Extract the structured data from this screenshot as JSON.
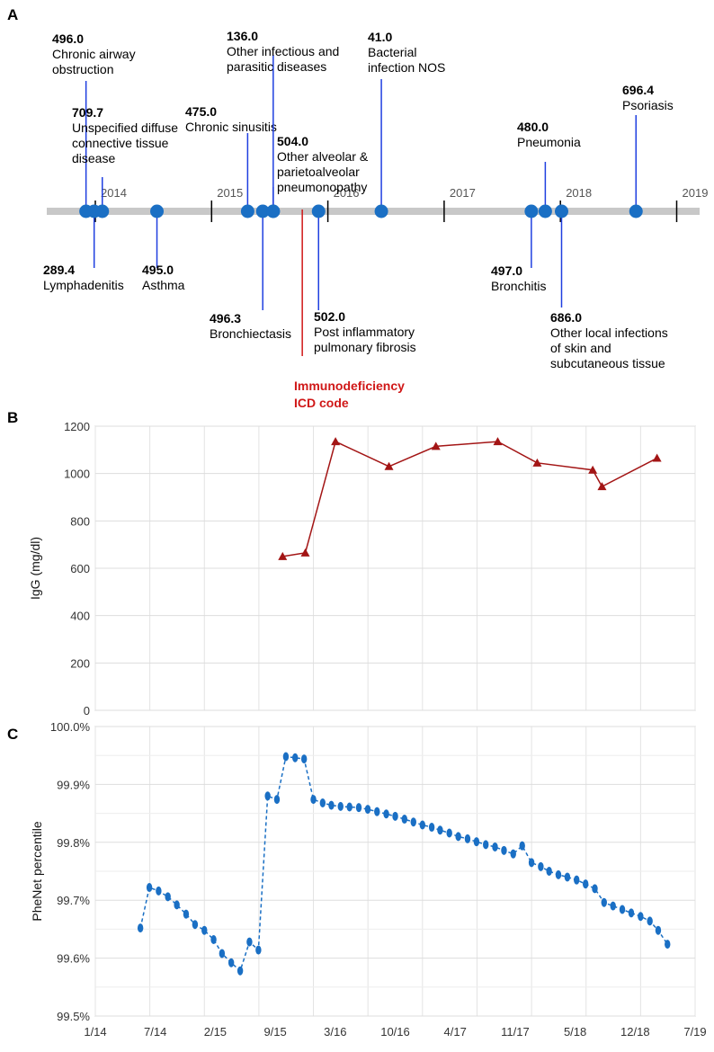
{
  "chart_data": [
    {
      "panel": "A",
      "type": "timeline",
      "years": [
        "2014",
        "2015",
        "2016",
        "2017",
        "2018",
        "2019"
      ],
      "events": [
        {
          "date": "2013.92",
          "code": "496.0",
          "label": [
            "Chronic airway",
            "obstruction"
          ],
          "side": "above"
        },
        {
          "date": "2013.99",
          "code": "289.4",
          "label": [
            "Lymphadenitis"
          ],
          "side": "below"
        },
        {
          "date": "2014.06",
          "code": "709.7",
          "label": [
            "Unspecified diffuse",
            "connective tissue",
            "disease"
          ],
          "side": "above"
        },
        {
          "date": "2014.53",
          "code": "495.0",
          "label": [
            "Asthma"
          ],
          "side": "below"
        },
        {
          "date": "2015.31",
          "code": "475.0",
          "label": [
            "Chronic sinusitis"
          ],
          "side": "above"
        },
        {
          "date": "2015.44",
          "code": "496.3",
          "label": [
            "Bronchiectasis"
          ],
          "side": "below"
        },
        {
          "date": "2015.53",
          "code": "136.0",
          "label": [
            "Other infectious and",
            "parasitic diseases"
          ],
          "side": "above"
        },
        {
          "date": "2015.53",
          "code": "504.0",
          "label": [
            "Other alveolar &",
            "parietoalveolar",
            "pneumonopathy"
          ],
          "side": "above"
        },
        {
          "date": "2015.92",
          "code": "502.0",
          "label": [
            "Post inflammatory",
            "pulmonary fibrosis"
          ],
          "side": "below"
        },
        {
          "date": "2016.46",
          "code": "41.0",
          "label": [
            "Bacterial",
            "infection NOS"
          ],
          "side": "above"
        },
        {
          "date": "2017.75",
          "code": "497.0",
          "label": [
            "Bronchitis"
          ],
          "side": "below"
        },
        {
          "date": "2017.87",
          "code": "480.0",
          "label": [
            "Pneumonia"
          ],
          "side": "above"
        },
        {
          "date": "2018.01",
          "code": "686.0",
          "label": [
            "Other local infections",
            "of skin and",
            "subcutaneous tissue"
          ],
          "side": "below"
        },
        {
          "date": "2018.65",
          "code": "696.4",
          "label": [
            "Psoriasis"
          ],
          "side": "above"
        }
      ],
      "marker": {
        "date": "2015.78",
        "label": [
          "Immunodeficiency",
          "ICD code"
        ],
        "color": "#d01818"
      },
      "colors": {
        "point": "#1a6fc4",
        "stem": "#1f3fe0",
        "axis": "#c8c8c8"
      }
    },
    {
      "panel": "B",
      "type": "line",
      "ylabel": "IgG (mg/dl)",
      "ylim": [
        0,
        1200
      ],
      "yticks": [
        "0",
        "200",
        "400",
        "600",
        "800",
        "1000",
        "1200"
      ],
      "grid": true,
      "color": "#a31515",
      "marker": "triangle",
      "points": [
        {
          "x": "2015-09-20",
          "y": 650
        },
        {
          "x": "2015-12-05",
          "y": 665
        },
        {
          "x": "2016-03-15",
          "y": 1135
        },
        {
          "x": "2016-09-10",
          "y": 1030
        },
        {
          "x": "2017-02-15",
          "y": 1115
        },
        {
          "x": "2017-09-10",
          "y": 1135
        },
        {
          "x": "2018-01-20",
          "y": 1045
        },
        {
          "x": "2018-07-25",
          "y": 1015
        },
        {
          "x": "2018-08-25",
          "y": 945
        },
        {
          "x": "2019-02-25",
          "y": 1065
        }
      ]
    },
    {
      "panel": "C",
      "type": "line",
      "ylabel": "PheNet percentile",
      "ylim": [
        99.5,
        100.0
      ],
      "yticks": [
        "99.5%",
        "99.6%",
        "99.7%",
        "99.8%",
        "99.9%",
        "100.0%"
      ],
      "xticks": [
        "1/14",
        "7/14",
        "2/15",
        "9/15",
        "3/16",
        "10/16",
        "4/17",
        "11/17",
        "5/18",
        "12/18",
        "7/19"
      ],
      "grid": true,
      "color": "#1a6fc4",
      "line_style": "dashed",
      "points": [
        {
          "x": "2014-06-01",
          "y": 99.652
        },
        {
          "x": "2014-07-01",
          "y": 99.722
        },
        {
          "x": "2014-08-01",
          "y": 99.716
        },
        {
          "x": "2014-09-01",
          "y": 99.706
        },
        {
          "x": "2014-10-01",
          "y": 99.692
        },
        {
          "x": "2014-11-01",
          "y": 99.676
        },
        {
          "x": "2014-12-01",
          "y": 99.658
        },
        {
          "x": "2015-01-01",
          "y": 99.648
        },
        {
          "x": "2015-02-01",
          "y": 99.632
        },
        {
          "x": "2015-03-01",
          "y": 99.608
        },
        {
          "x": "2015-04-01",
          "y": 99.592
        },
        {
          "x": "2015-05-01",
          "y": 99.578
        },
        {
          "x": "2015-06-01",
          "y": 99.628
        },
        {
          "x": "2015-07-01",
          "y": 99.614
        },
        {
          "x": "2015-08-01",
          "y": 99.88
        },
        {
          "x": "2015-09-01",
          "y": 99.874
        },
        {
          "x": "2015-10-01",
          "y": 99.948
        },
        {
          "x": "2015-11-01",
          "y": 99.946
        },
        {
          "x": "2015-12-01",
          "y": 99.944
        },
        {
          "x": "2016-01-01",
          "y": 99.874
        },
        {
          "x": "2016-02-01",
          "y": 99.868
        },
        {
          "x": "2016-03-01",
          "y": 99.864
        },
        {
          "x": "2016-04-01",
          "y": 99.862
        },
        {
          "x": "2016-05-01",
          "y": 99.861
        },
        {
          "x": "2016-06-01",
          "y": 99.86
        },
        {
          "x": "2016-07-01",
          "y": 99.857
        },
        {
          "x": "2016-08-01",
          "y": 99.853
        },
        {
          "x": "2016-09-01",
          "y": 99.849
        },
        {
          "x": "2016-10-01",
          "y": 99.845
        },
        {
          "x": "2016-11-01",
          "y": 99.84
        },
        {
          "x": "2016-12-01",
          "y": 99.835
        },
        {
          "x": "2017-01-01",
          "y": 99.83
        },
        {
          "x": "2017-02-01",
          "y": 99.826
        },
        {
          "x": "2017-03-01",
          "y": 99.821
        },
        {
          "x": "2017-04-01",
          "y": 99.816
        },
        {
          "x": "2017-05-01",
          "y": 99.81
        },
        {
          "x": "2017-06-01",
          "y": 99.806
        },
        {
          "x": "2017-07-01",
          "y": 99.801
        },
        {
          "x": "2017-08-01",
          "y": 99.796
        },
        {
          "x": "2017-09-01",
          "y": 99.792
        },
        {
          "x": "2017-10-01",
          "y": 99.786
        },
        {
          "x": "2017-11-01",
          "y": 99.78
        },
        {
          "x": "2017-12-01",
          "y": 99.794
        },
        {
          "x": "2018-01-01",
          "y": 99.765
        },
        {
          "x": "2018-02-01",
          "y": 99.758
        },
        {
          "x": "2018-03-01",
          "y": 99.75
        },
        {
          "x": "2018-04-01",
          "y": 99.744
        },
        {
          "x": "2018-05-01",
          "y": 99.74
        },
        {
          "x": "2018-06-01",
          "y": 99.735
        },
        {
          "x": "2018-07-01",
          "y": 99.728
        },
        {
          "x": "2018-08-01",
          "y": 99.72
        },
        {
          "x": "2018-09-01",
          "y": 99.696
        },
        {
          "x": "2018-10-01",
          "y": 99.69
        },
        {
          "x": "2018-11-01",
          "y": 99.684
        },
        {
          "x": "2018-12-01",
          "y": 99.678
        },
        {
          "x": "2019-01-01",
          "y": 99.672
        },
        {
          "x": "2019-02-01",
          "y": 99.664
        },
        {
          "x": "2019-03-01",
          "y": 99.648
        },
        {
          "x": "2019-04-01",
          "y": 99.624
        }
      ]
    }
  ],
  "panel_letters": {
    "a": "A",
    "b": "B",
    "c": "C"
  }
}
